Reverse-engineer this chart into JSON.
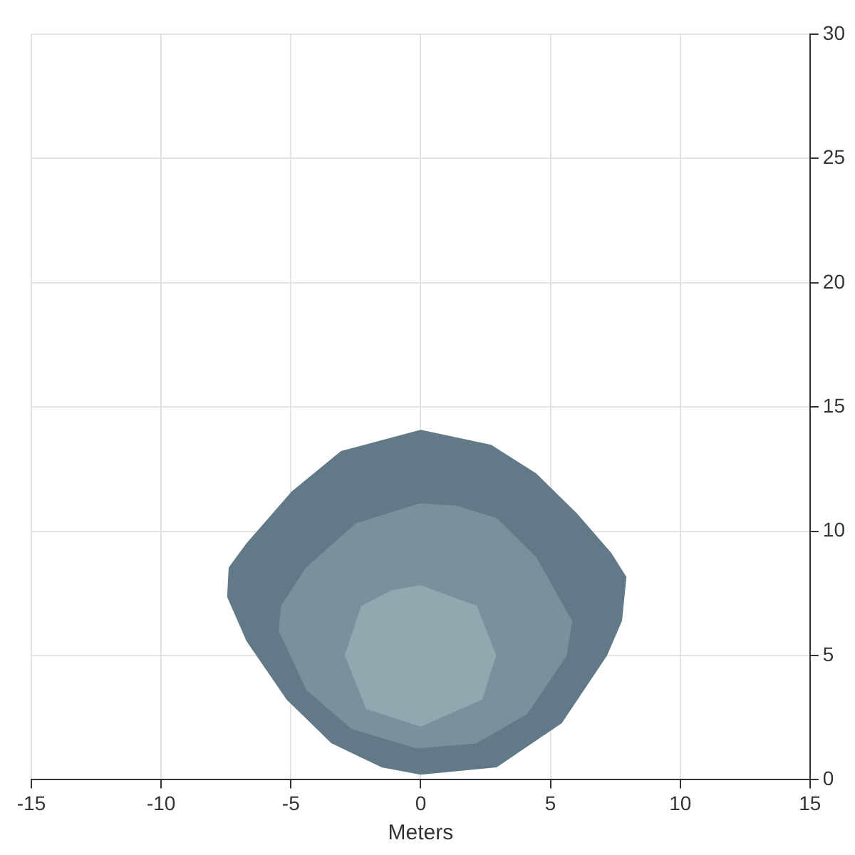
{
  "chart_data": {
    "type": "area",
    "xlabel": "Meters",
    "xlim": [
      -15,
      15
    ],
    "xticks": [
      -15,
      -10,
      -5,
      0,
      5,
      10,
      15
    ],
    "ylim": [
      0,
      30
    ],
    "yticks": [
      0,
      5,
      10,
      15,
      20,
      25,
      30
    ],
    "grid": true,
    "legend": false,
    "series": [
      {
        "color": "#627a87",
        "x": [
          0,
          2.71,
          4.44,
          6.0,
          7.33,
          7.9,
          7.73,
          7.15,
          5.42,
          2.92,
          0,
          -1.5,
          -3.42,
          -5.15,
          -6.69,
          -7.43,
          -7.37,
          -6.69,
          -4.96,
          -3.06,
          0
        ],
        "values": [
          14.05,
          13.45,
          12.3,
          10.7,
          9.1,
          8.15,
          6.4,
          5.0,
          2.3,
          0.53,
          0.23,
          0.53,
          1.49,
          3.25,
          5.6,
          7.36,
          8.53,
          9.5,
          11.57,
          13.2,
          14.05
        ]
      },
      {
        "color": "#7a909c",
        "x": [
          0,
          1.38,
          2.92,
          4.44,
          5.81,
          5.6,
          4.08,
          2.13,
          -0.17,
          -2.65,
          -4.39,
          -5.44,
          -5.35,
          -4.39,
          -2.48,
          0
        ],
        "values": [
          11.1,
          11.0,
          10.5,
          8.93,
          6.38,
          5.0,
          2.66,
          1.49,
          1.29,
          2.07,
          3.64,
          6.0,
          7.0,
          8.53,
          10.3,
          11.1
        ]
      },
      {
        "color": "#93a7b0",
        "x": [
          0,
          2.15,
          2.88,
          2.35,
          0,
          -2.08,
          -2.9,
          -2.27,
          -1.11,
          0
        ],
        "values": [
          7.8,
          6.97,
          5.0,
          3.25,
          2.17,
          2.87,
          5.0,
          6.97,
          7.6,
          7.8
        ]
      }
    ]
  }
}
